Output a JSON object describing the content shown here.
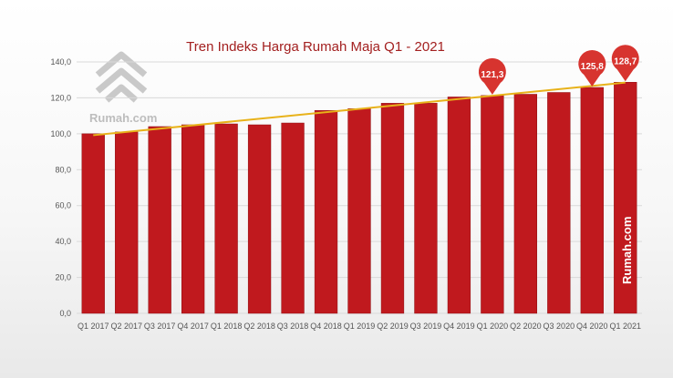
{
  "watermark": {
    "brand_text": "Rumah.com",
    "side_brand_text": "Rumah.com",
    "logo_icon": "house-logo-icon"
  },
  "colors": {
    "bar": "#c0191e",
    "bar_edge": "#8e0f12",
    "trend": "#e8b21a",
    "pin": "#d7342f",
    "grid": "#d9d9d9",
    "title": "#a32020"
  },
  "chart_data": {
    "type": "bar",
    "title": "Tren Indeks Harga Rumah Maja Q1 - 2021",
    "xlabel": "",
    "ylabel": "",
    "ylim": [
      0,
      140
    ],
    "yticks": [
      "0,0",
      "20,0",
      "40,0",
      "60,0",
      "80,0",
      "100,0",
      "120,0",
      "140,0"
    ],
    "grid": true,
    "legend": "none",
    "categories": [
      "Q1 2017",
      "Q2 2017",
      "Q3 2017",
      "Q4 2017",
      "Q1 2018",
      "Q2 2018",
      "Q3 2018",
      "Q4 2018",
      "Q1 2019",
      "Q2 2019",
      "Q3 2019",
      "Q4 2019",
      "Q1 2020",
      "Q2 2020",
      "Q3 2020",
      "Q4 2020",
      "Q1 2021"
    ],
    "values": [
      100.0,
      101.0,
      104.0,
      105.0,
      105.5,
      105.0,
      106.0,
      113.0,
      114.0,
      117.0,
      117.0,
      120.5,
      121.3,
      122.0,
      123.0,
      125.8,
      128.7
    ],
    "trendline": {
      "type": "linear",
      "start": 99.2,
      "end": 128.5
    },
    "callouts": [
      {
        "category": "Q1 2020",
        "label": "121,3"
      },
      {
        "category": "Q4 2020",
        "label": "125,8"
      },
      {
        "category": "Q1 2021",
        "label": "128,7"
      }
    ]
  }
}
